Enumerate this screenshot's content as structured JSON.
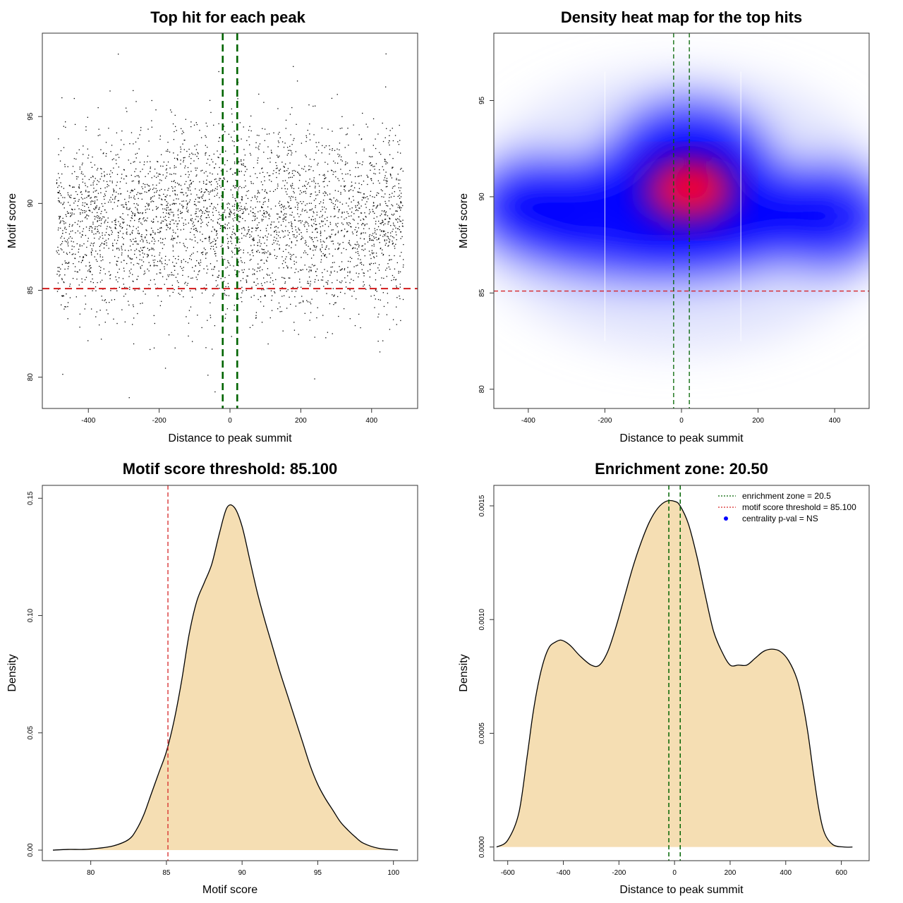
{
  "chart_data": [
    {
      "type": "scatter",
      "title": "Top hit for each peak",
      "xlabel": "Distance to peak summit",
      "ylabel": "Motif score",
      "xlim": [
        -530,
        530
      ],
      "ylim": [
        78.2,
        99.8
      ],
      "xticks": [
        -400,
        -200,
        0,
        200,
        400
      ],
      "yticks": [
        80,
        85,
        90,
        95
      ],
      "xtick_labels": [
        "-400",
        "-200",
        "0",
        "200",
        "400"
      ],
      "ytick_labels": [
        "80",
        "85",
        "90",
        "95"
      ],
      "threshold": 85.1,
      "zone": [
        -20.5,
        20.5
      ],
      "colors": {
        "points": "#000000",
        "threshold": "#d62728",
        "zone": "#006400"
      },
      "grid": false
    },
    {
      "type": "heatmap",
      "title": "Density heat map for the top hits",
      "xlabel": "Distance to peak summit",
      "ylabel": "Motif score",
      "xlim": [
        -490,
        490
      ],
      "ylim": [
        79.0,
        98.5
      ],
      "xticks": [
        -400,
        -200,
        0,
        200,
        400
      ],
      "yticks": [
        80,
        85,
        90,
        95
      ],
      "xtick_labels": [
        "-400",
        "-200",
        "0",
        "200",
        "400"
      ],
      "ytick_labels": [
        "80",
        "85",
        "90",
        "95"
      ],
      "threshold": 85.1,
      "zone": [
        -20.5,
        20.5
      ],
      "colors": {
        "low": "#ffffff",
        "mid": "#0000ff",
        "high": "#ff0000",
        "threshold": "#d62728",
        "zone": "#006400"
      },
      "grid": false
    },
    {
      "type": "area",
      "title": "Motif score threshold: 85.100",
      "xlabel": "Motif score",
      "ylabel": "Density",
      "xlim": [
        76.8,
        101.6
      ],
      "ylim": [
        -0.0045,
        0.1555
      ],
      "xticks": [
        80,
        85,
        90,
        95,
        100
      ],
      "yticks": [
        0.0,
        0.05,
        0.1,
        0.15
      ],
      "xtick_labels": [
        "80",
        "85",
        "90",
        "95",
        "100"
      ],
      "ytick_labels": [
        "0.00",
        "0.05",
        "0.10",
        "0.15"
      ],
      "threshold": 85.1,
      "x": [
        77.5,
        78.5,
        79.5,
        80.5,
        81.5,
        82.5,
        83.0,
        83.5,
        84.0,
        84.5,
        85.0,
        85.5,
        86.0,
        86.5,
        87.0,
        87.5,
        88.0,
        88.5,
        89.0,
        89.5,
        90.0,
        90.5,
        91.0,
        91.5,
        92.0,
        92.5,
        93.0,
        93.5,
        94.0,
        94.5,
        95.0,
        95.5,
        96.0,
        96.5,
        97.0,
        97.5,
        98.0,
        99.0,
        100.3
      ],
      "y": [
        0.0,
        0.0003,
        0.0003,
        0.0008,
        0.0018,
        0.0045,
        0.0085,
        0.015,
        0.024,
        0.033,
        0.042,
        0.055,
        0.072,
        0.092,
        0.106,
        0.114,
        0.122,
        0.135,
        0.146,
        0.146,
        0.138,
        0.124,
        0.11,
        0.098,
        0.087,
        0.076,
        0.066,
        0.056,
        0.046,
        0.036,
        0.028,
        0.022,
        0.017,
        0.012,
        0.0085,
        0.0055,
        0.003,
        0.0008,
        0.0
      ],
      "colors": {
        "fill": "#f5deb3",
        "line": "#000000",
        "threshold": "#d62728"
      },
      "grid": false
    },
    {
      "type": "area",
      "title": "Enrichment zone: 20.50",
      "xlabel": "Distance to peak summit",
      "ylabel": "Density",
      "xlim": [
        -650,
        700
      ],
      "ylim": [
        -6e-05,
        0.00159
      ],
      "xticks": [
        -600,
        -400,
        -200,
        0,
        200,
        400,
        600
      ],
      "yticks": [
        0.0,
        0.0005,
        0.001,
        0.0015
      ],
      "xtick_labels": [
        "-600",
        "-400",
        "-200",
        "0",
        "200",
        "400",
        "600"
      ],
      "ytick_labels": [
        "0.0000",
        "0.0005",
        "0.0010",
        "0.0015"
      ],
      "zone": [
        -20.5,
        20.5
      ],
      "x": [
        -640,
        -600,
        -560,
        -530,
        -510,
        -490,
        -470,
        -450,
        -430,
        -410,
        -390,
        -370,
        -340,
        -300,
        -270,
        -240,
        -210,
        -180,
        -150,
        -120,
        -90,
        -60,
        -30,
        0,
        20,
        50,
        80,
        110,
        140,
        170,
        200,
        230,
        260,
        290,
        320,
        350,
        380,
        410,
        440,
        460,
        480,
        500,
        520,
        540,
        570,
        610,
        640
      ],
      "y": [
        0.0,
        3e-05,
        0.00015,
        0.0004,
        0.00058,
        0.00072,
        0.00082,
        0.00088,
        0.0009,
        0.00091,
        0.0009,
        0.00088,
        0.00084,
        0.0008,
        0.0008,
        0.00086,
        0.00097,
        0.0011,
        0.00123,
        0.00134,
        0.00143,
        0.00149,
        0.00152,
        0.00152,
        0.0015,
        0.00142,
        0.00128,
        0.00111,
        0.00095,
        0.00086,
        0.0008,
        0.0008,
        0.0008,
        0.00083,
        0.00086,
        0.00087,
        0.00086,
        0.00082,
        0.00074,
        0.00064,
        0.0005,
        0.00032,
        0.00016,
        6e-05,
        1e-05,
        0.0,
        0.0
      ],
      "legend": {
        "position": "top-right",
        "entries": [
          "enrichment zone = 20.5",
          "motif score threshold = 85.100",
          "centrality p-val = NS"
        ]
      },
      "colors": {
        "fill": "#f5deb3",
        "line": "#000000",
        "zone": "#006400",
        "legend_zone": "#006400",
        "legend_threshold": "#d62728",
        "legend_pval": "#0000ff"
      },
      "grid": false
    }
  ]
}
